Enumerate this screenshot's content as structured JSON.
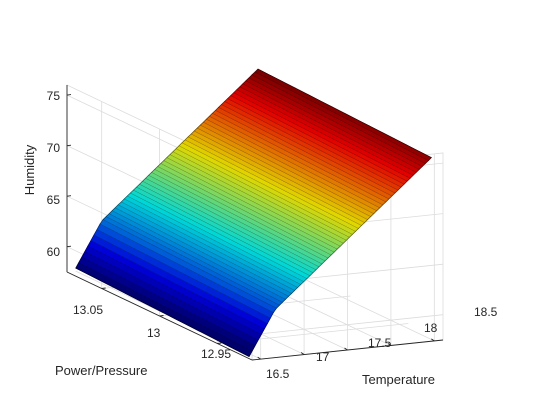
{
  "chart_data": {
    "type": "surface3d",
    "title": "",
    "xlabel": "Temperature",
    "ylabel": "Power/Pressure",
    "zlabel": "Humidity",
    "x_ticks": [
      "16.5",
      "17",
      "17.5",
      "18",
      "18.5"
    ],
    "y_ticks": [
      "13.05",
      "13",
      "12.95"
    ],
    "z_ticks": [
      "60",
      "65",
      "70",
      "75"
    ],
    "xlim": [
      16.4,
      18.6
    ],
    "ylim": [
      12.92,
      13.08
    ],
    "zlim": [
      57.5,
      76
    ],
    "grid": true,
    "colormap": "jet",
    "surface": {
      "x_range": [
        16.5,
        18.6
      ],
      "y_range": [
        12.93,
        13.08
      ],
      "z_min": 57.8,
      "z_max": 75.6,
      "z_fold": 62.2,
      "x_fold": 16.8
    }
  }
}
